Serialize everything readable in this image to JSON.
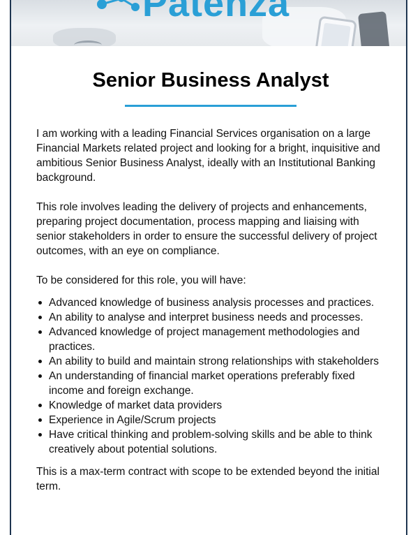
{
  "banner": {
    "logo_text": "Patenza",
    "logo_icon": "network-dots-icon"
  },
  "job": {
    "title": "Senior Business Analyst",
    "intro": "I am working with a leading Financial Services organisation on a large Financial Markets related project and looking for a bright, inquisitive and ambitious Senior Business Analyst, ideally with an Institutional Banking background.",
    "role": "This role involves leading the delivery of projects and enhancements, preparing project documentation, process mapping and liaising with senior stakeholders in order to ensure the successful delivery of project outcomes, with an eye on compliance.",
    "requirements_heading": "To be considered for this role, you will have:",
    "requirements": [
      "Advanced knowledge of business analysis processes and practices.",
      "An ability to analyse and interpret business needs and processes.",
      "Advanced knowledge of project management methodologies and practices.",
      "An ability to build and maintain strong relationships with stakeholders",
      "An understanding of financial market operations preferably fixed income and foreign exchange.",
      "Knowledge of market data providers",
      "Experience in Agile/Scrum projects",
      "Have critical thinking and problem-solving skills and be able to think creatively about potential solutions."
    ],
    "closing": "This is a max-term contract with scope to be extended beyond the initial term."
  },
  "colors": {
    "accent": "#2a9fd6",
    "frame_border": "#1e3550"
  }
}
